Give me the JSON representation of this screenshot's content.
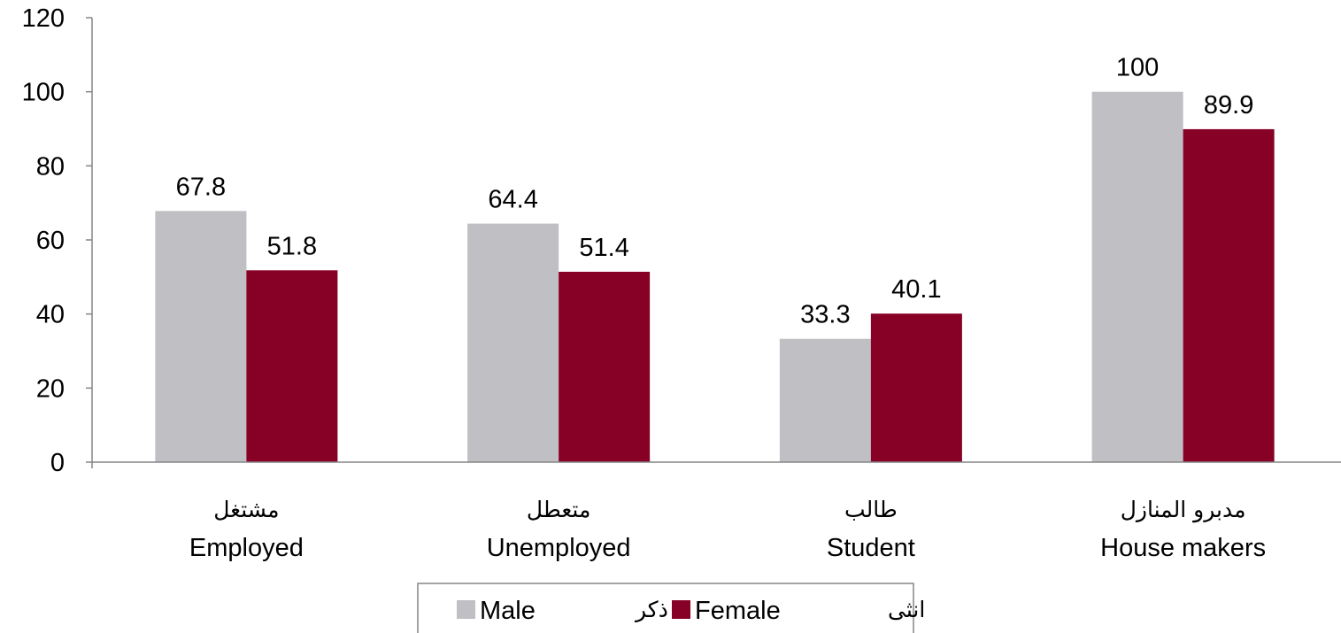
{
  "chart_data": {
    "type": "bar",
    "categories": [
      {
        "en": "Employed",
        "ar": "مشتغل"
      },
      {
        "en": "Unemployed",
        "ar": "متعطل"
      },
      {
        "en": "Student",
        "ar": "طالب"
      },
      {
        "en": "House makers",
        "ar": "مدبرو المنازل"
      }
    ],
    "series": [
      {
        "name": "Male",
        "name_ar": "ذكر",
        "color": "#BFBFC4",
        "values": [
          67.8,
          64.4,
          33.3,
          100
        ]
      },
      {
        "name": "Female",
        "name_ar": "انثى",
        "color": "#870025",
        "values": [
          51.8,
          51.4,
          40.1,
          89.9
        ]
      }
    ],
    "value_labels": [
      [
        "67.8",
        "64.4",
        "33.3",
        "100"
      ],
      [
        "51.8",
        "51.4",
        "40.1",
        "89.9"
      ]
    ],
    "ylim": [
      0,
      120
    ],
    "yticks": [
      "0",
      "20",
      "40",
      "60",
      "80",
      "100",
      "120"
    ],
    "grid": false,
    "legend_position": "bottom"
  }
}
